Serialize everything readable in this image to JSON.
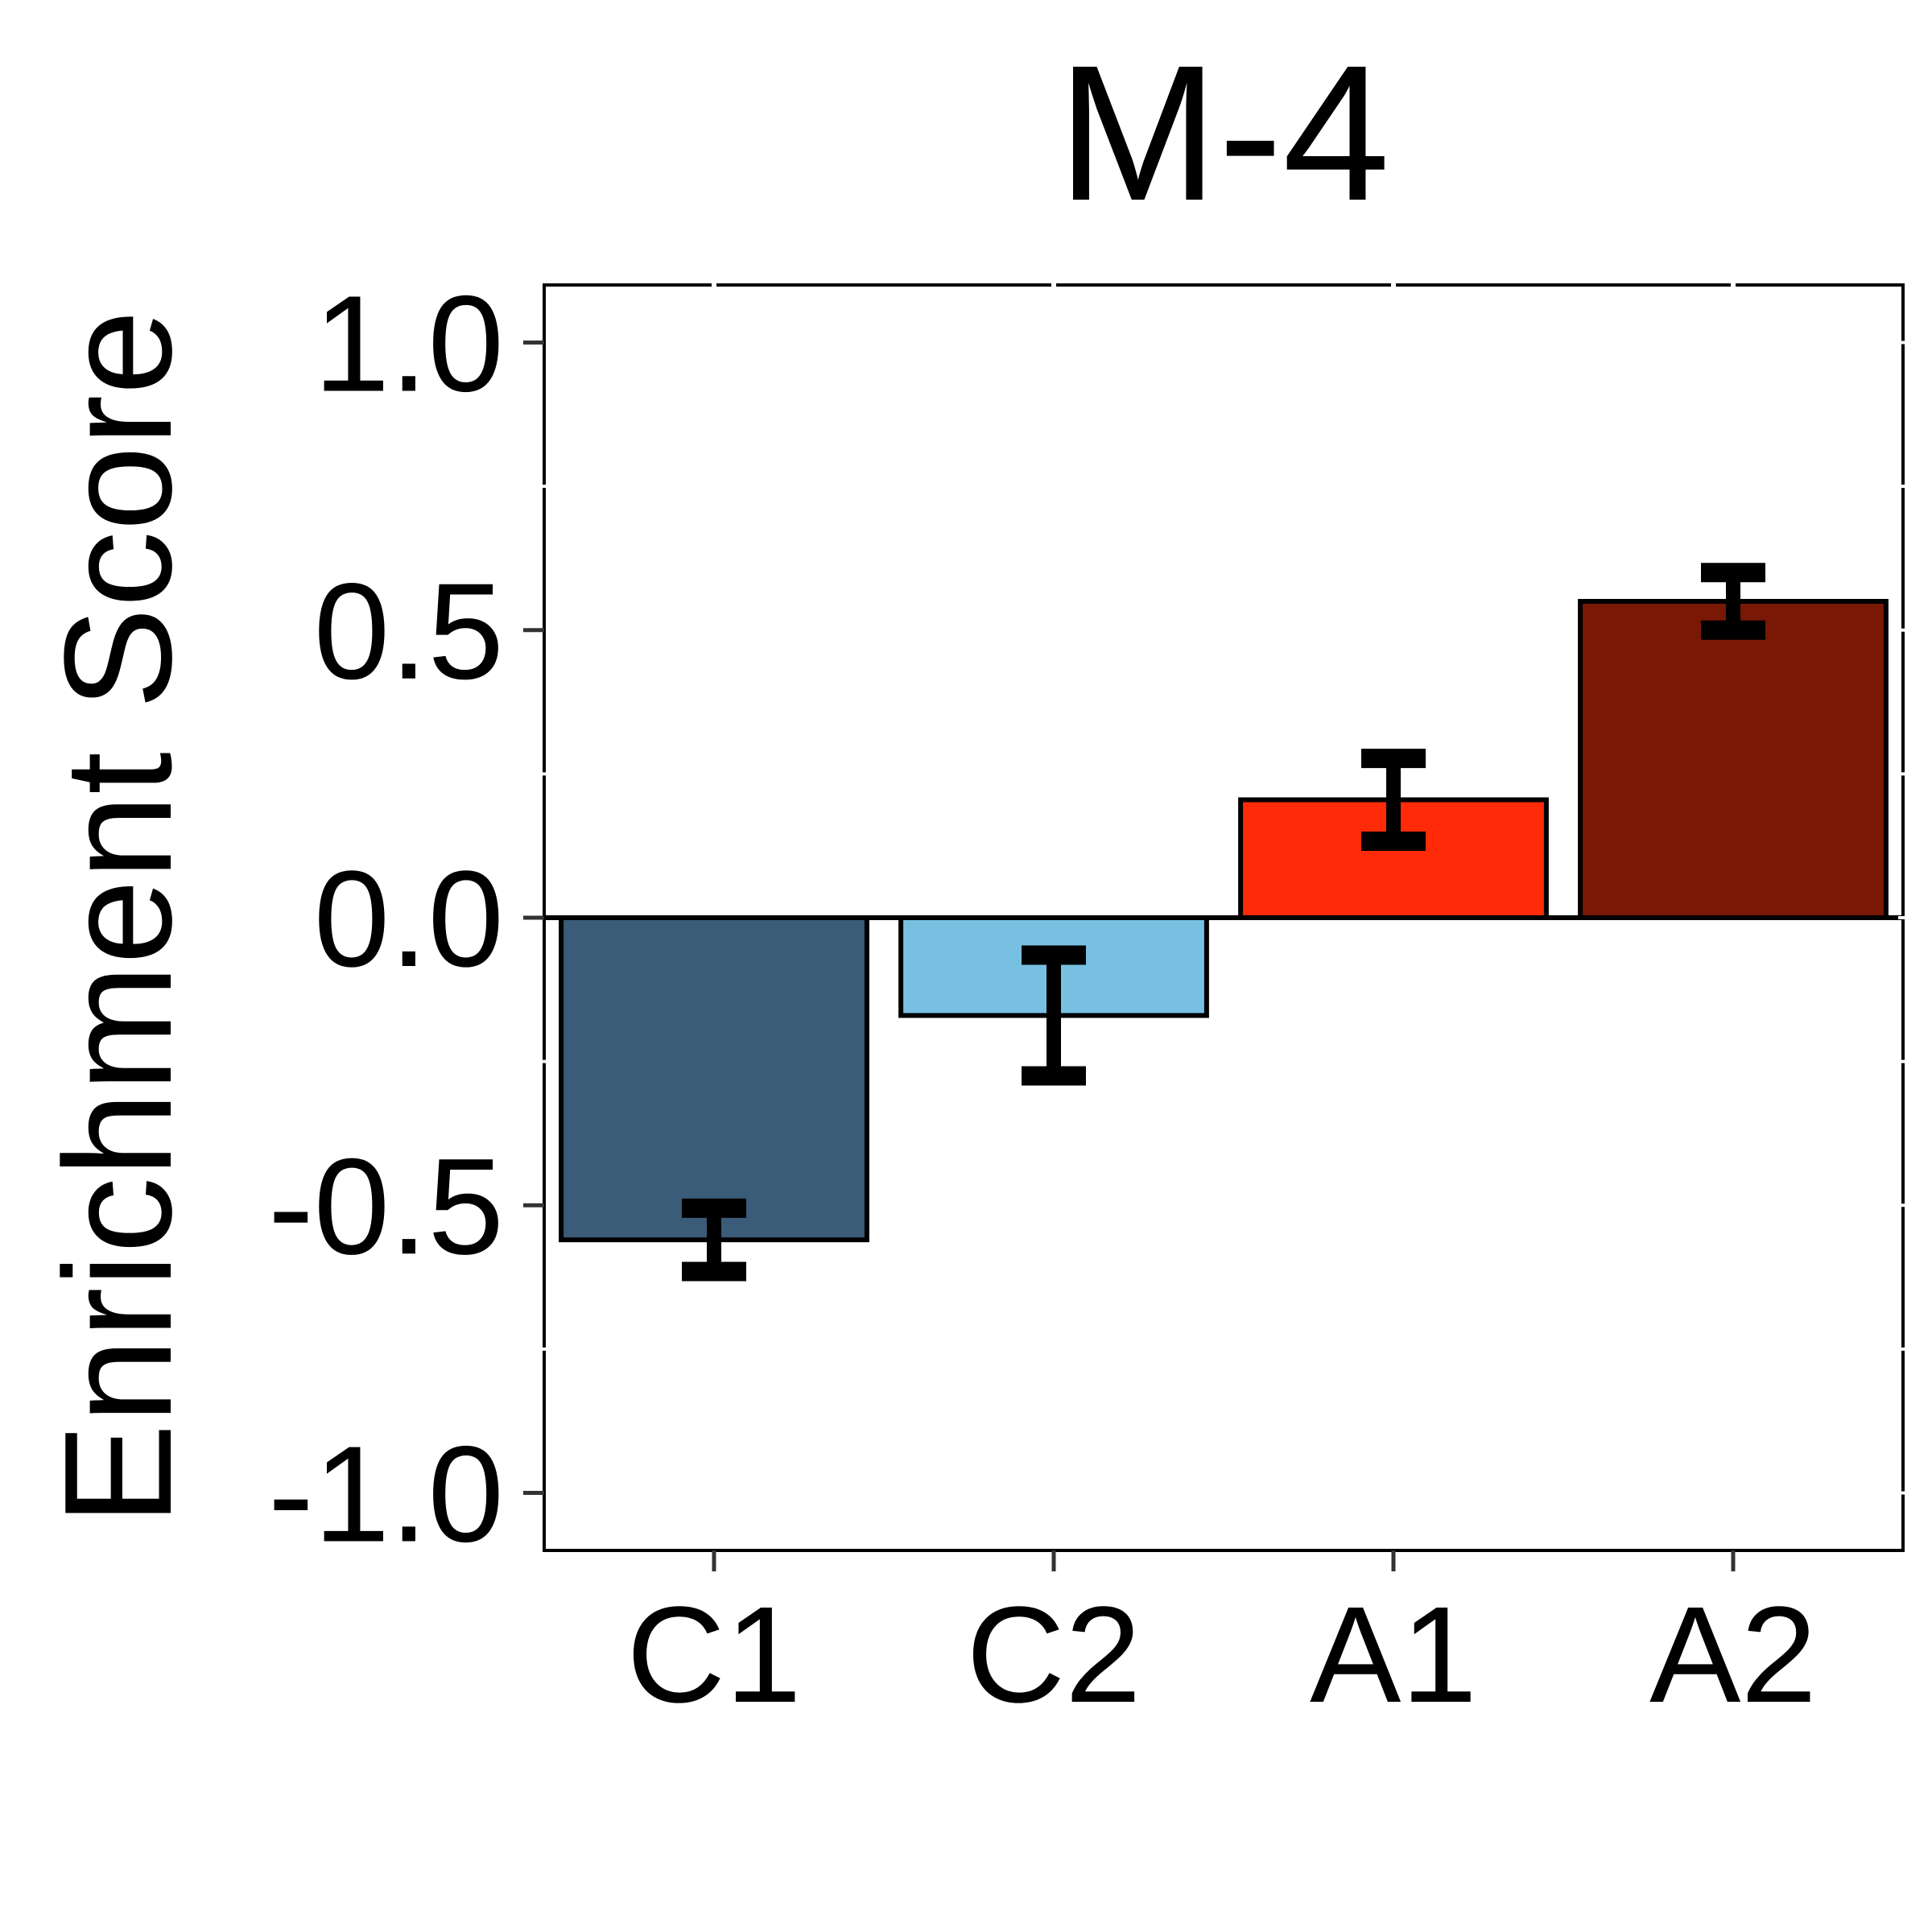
{
  "chart_data": {
    "type": "bar",
    "title": "M-4",
    "xlabel": "",
    "ylabel": "Enrichment Score",
    "categories": [
      "C1",
      "C2",
      "A1",
      "A2"
    ],
    "values": [
      -0.56,
      -0.17,
      0.205,
      0.55
    ],
    "errors": [
      0.055,
      0.105,
      0.072,
      0.05
    ],
    "colors": [
      "#3b5c78",
      "#78c0e2",
      "#ff2a08",
      "#781805"
    ],
    "ylim": [
      -1.1,
      1.1
    ],
    "yticks": [
      1.0,
      0.5,
      0.0,
      -0.5,
      -1.0
    ],
    "ytick_labels": [
      "1.0",
      "0.5",
      "0.0",
      "-0.5",
      "-1.0"
    ],
    "grid": false,
    "legend": "none"
  }
}
